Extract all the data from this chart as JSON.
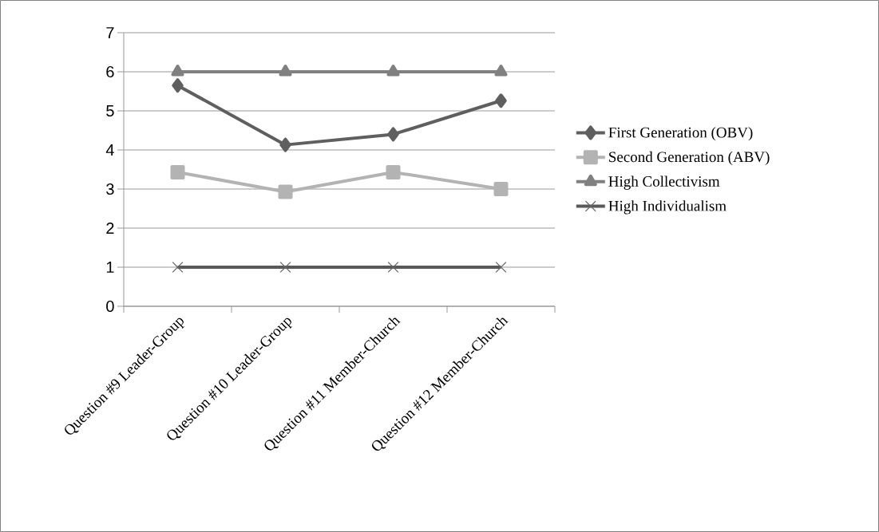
{
  "chart_data": {
    "type": "line",
    "categories": [
      "Question #9 Leader-Group",
      "Question #10 Leader-Group",
      "Question #11 Member-Church",
      "Question #12 Member-Church"
    ],
    "series": [
      {
        "name": "First Generation (OBV)",
        "color": "#5f5f5f",
        "marker": "diamond",
        "values": [
          5.65,
          4.13,
          4.4,
          5.26
        ]
      },
      {
        "name": "Second Generation (ABV)",
        "color": "#b3b3b3",
        "marker": "square",
        "values": [
          3.43,
          2.93,
          3.43,
          3.0
        ]
      },
      {
        "name": "High Collectivism",
        "color": "#808080",
        "marker": "triangle",
        "values": [
          6,
          6,
          6,
          6
        ]
      },
      {
        "name": "High Individualism",
        "color": "#595959",
        "marker": "cross",
        "values": [
          1,
          1,
          1,
          1
        ]
      }
    ],
    "ylim": [
      0,
      7
    ],
    "yticks": [
      0,
      1,
      2,
      3,
      4,
      5,
      6,
      7
    ],
    "grid": "y",
    "legend": "right"
  }
}
